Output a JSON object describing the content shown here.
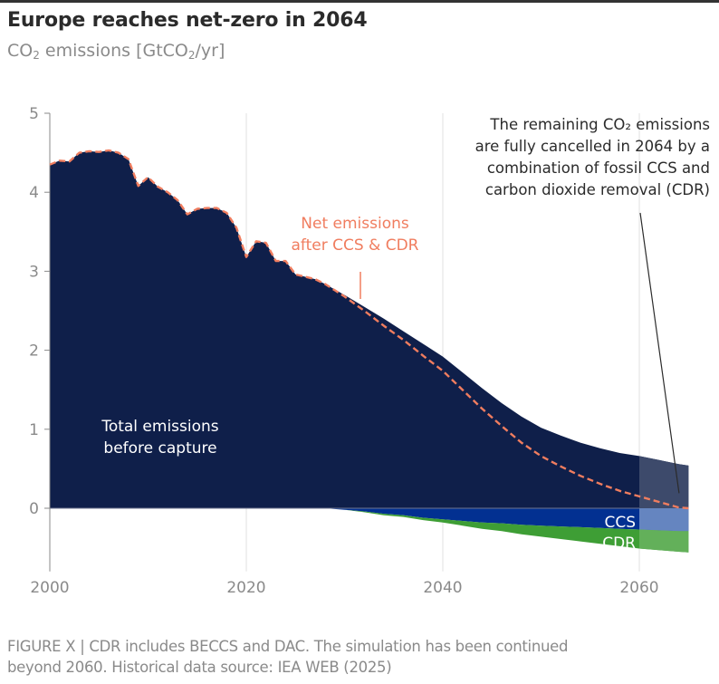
{
  "header": {
    "title": "Europe reaches net-zero in 2064",
    "subtitle_prefix": "CO",
    "subtitle_sub": "2",
    "subtitle_mid": " emissions [GtCO",
    "subtitle_sub2": "2",
    "subtitle_suffix": "/yr]"
  },
  "colors": {
    "total": "#0f1f4a",
    "ccs": "#023091",
    "cdr": "#3e9e35",
    "net_line": "#f07d5f",
    "total_projection": "#3d4a6b",
    "ccs_projection": "#6585c0",
    "cdr_projection": "#63b05a",
    "axis": "#8a8a8a",
    "grid": "#e6e6e6",
    "annotation": "#2b2b2b"
  },
  "chart_data": {
    "type": "area",
    "title": "Europe reaches net-zero in 2064",
    "ylabel": "CO2 emissions [GtCO2/yr]",
    "xlabel": "",
    "xlim": [
      2000,
      2065
    ],
    "ylim": [
      -0.8,
      5
    ],
    "x_ticks": [
      2000,
      2020,
      2040,
      2060
    ],
    "y_ticks": [
      0,
      1,
      2,
      3,
      4,
      5
    ],
    "grid": "vertical",
    "projection_shaded_after": 2060,
    "x": [
      2000,
      2001,
      2002,
      2003,
      2004,
      2005,
      2006,
      2007,
      2008,
      2009,
      2010,
      2011,
      2012,
      2013,
      2014,
      2015,
      2016,
      2017,
      2018,
      2019,
      2020,
      2021,
      2022,
      2023,
      2024,
      2025,
      2026,
      2027,
      2028,
      2029,
      2030,
      2032,
      2034,
      2036,
      2038,
      2040,
      2042,
      2044,
      2046,
      2048,
      2050,
      2052,
      2054,
      2056,
      2058,
      2060,
      2062,
      2064,
      2065
    ],
    "series": [
      {
        "name": "Total emissions before capture",
        "values": [
          4.35,
          4.4,
          4.39,
          4.5,
          4.52,
          4.51,
          4.53,
          4.5,
          4.42,
          4.08,
          4.19,
          4.07,
          4.0,
          3.9,
          3.72,
          3.79,
          3.8,
          3.8,
          3.74,
          3.55,
          3.18,
          3.38,
          3.36,
          3.13,
          3.13,
          2.96,
          2.93,
          2.9,
          2.84,
          2.77,
          2.7,
          2.55,
          2.4,
          2.24,
          2.08,
          1.92,
          1.72,
          1.52,
          1.33,
          1.16,
          1.02,
          0.92,
          0.83,
          0.76,
          0.7,
          0.66,
          0.61,
          0.56,
          0.54
        ]
      },
      {
        "name": "CCS",
        "values": [
          0,
          0,
          0,
          0,
          0,
          0,
          0,
          0,
          0,
          0,
          0,
          0,
          0,
          0,
          0,
          0,
          0,
          0,
          0,
          0,
          0,
          0,
          0,
          0,
          0,
          0,
          0,
          0,
          0,
          -0.01,
          -0.02,
          -0.04,
          -0.07,
          -0.09,
          -0.12,
          -0.14,
          -0.16,
          -0.18,
          -0.19,
          -0.21,
          -0.22,
          -0.23,
          -0.24,
          -0.25,
          -0.26,
          -0.27,
          -0.28,
          -0.29,
          -0.29
        ]
      },
      {
        "name": "CDR",
        "values": [
          0,
          0,
          0,
          0,
          0,
          0,
          0,
          0,
          0,
          0,
          0,
          0,
          0,
          0,
          0,
          0,
          0,
          0,
          0,
          0,
          0,
          0,
          0,
          0,
          0,
          0,
          0,
          0,
          0,
          0,
          0,
          -0.01,
          -0.02,
          -0.02,
          -0.03,
          -0.04,
          -0.06,
          -0.08,
          -0.1,
          -0.12,
          -0.14,
          -0.16,
          -0.18,
          -0.2,
          -0.22,
          -0.24,
          -0.25,
          -0.26,
          -0.27
        ]
      },
      {
        "name": "Net emissions after CCS & CDR",
        "style": "dashed",
        "values": [
          4.35,
          4.4,
          4.39,
          4.5,
          4.52,
          4.51,
          4.53,
          4.5,
          4.42,
          4.08,
          4.19,
          4.07,
          4.0,
          3.9,
          3.72,
          3.79,
          3.8,
          3.8,
          3.74,
          3.55,
          3.18,
          3.38,
          3.36,
          3.13,
          3.13,
          2.96,
          2.93,
          2.9,
          2.84,
          2.76,
          2.68,
          2.5,
          2.31,
          2.13,
          1.93,
          1.74,
          1.5,
          1.26,
          1.04,
          0.83,
          0.66,
          0.53,
          0.41,
          0.31,
          0.22,
          0.15,
          0.08,
          0.01,
          0.0
        ]
      }
    ],
    "labels": {
      "total": [
        "Total emissions",
        "before capture"
      ],
      "net": [
        "Net emissions",
        "after CCS & CDR"
      ],
      "ccs": "CCS",
      "cdr": "CDR"
    },
    "annotation": {
      "lines": [
        "The remaining CO₂ emissions",
        "are fully cancelled in 2064 by a",
        "combination of fossil CCS and",
        "carbon dioxide removal (CDR)"
      ],
      "points_to_year": 2064,
      "points_to_value": 0.03
    }
  },
  "caption": {
    "line1": "FIGURE X | CDR includes BECCS and DAC. The simulation has been continued",
    "line2": "beyond 2060. Historical data source: IEA WEB (2025)"
  }
}
